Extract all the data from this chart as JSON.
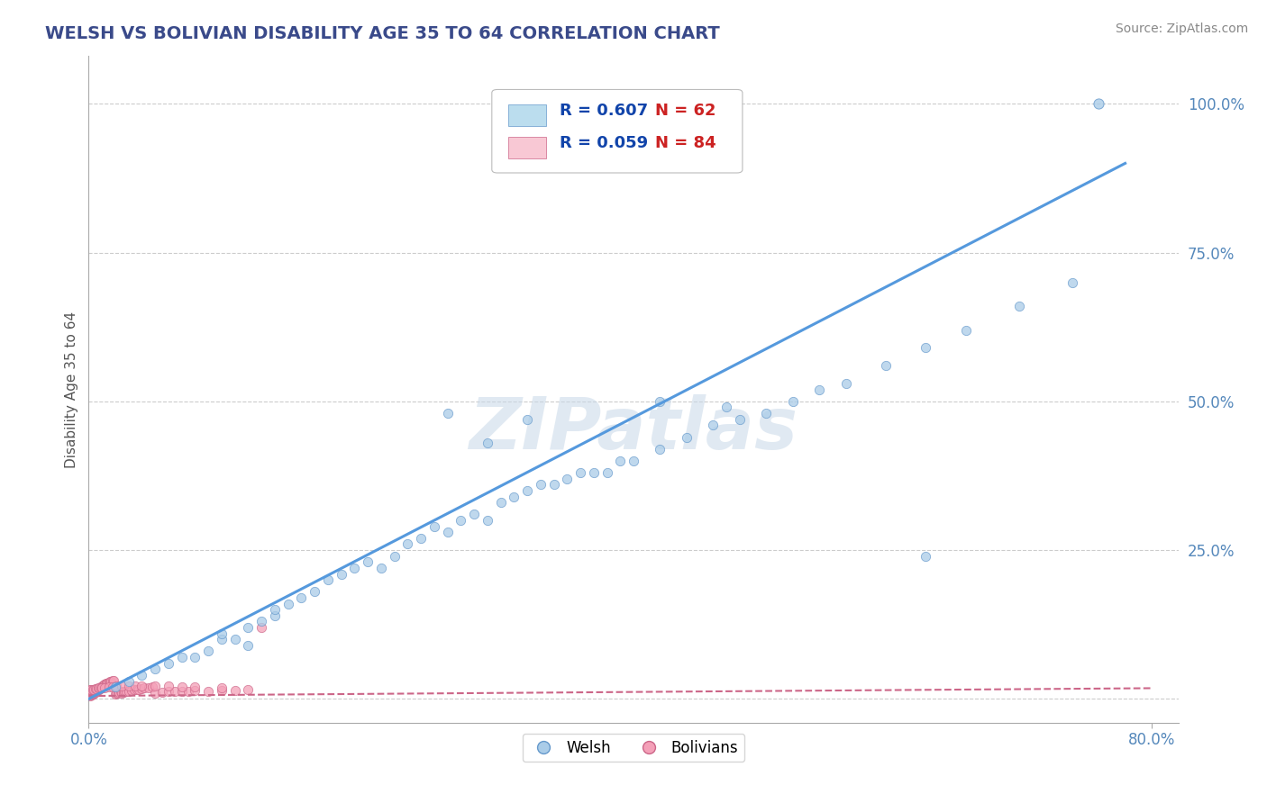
{
  "title": "WELSH VS BOLIVIAN DISABILITY AGE 35 TO 64 CORRELATION CHART",
  "source": "Source: ZipAtlas.com",
  "ylabel": "Disability Age 35 to 64",
  "xlim": [
    0.0,
    0.82
  ],
  "ylim": [
    -0.04,
    1.08
  ],
  "yticks": [
    0.0,
    0.25,
    0.5,
    0.75,
    1.0
  ],
  "ytick_labels": [
    "",
    "25.0%",
    "50.0%",
    "75.0%",
    "100.0%"
  ],
  "xticks": [
    0.0,
    0.8
  ],
  "xtick_labels": [
    "0.0%",
    "80.0%"
  ],
  "welsh_R": 0.607,
  "welsh_N": 62,
  "bolivian_R": 0.059,
  "bolivian_N": 84,
  "welsh_color": "#aacce8",
  "welsh_edge_color": "#6699cc",
  "welsh_line_color": "#5599dd",
  "bolivian_color": "#f4a0b8",
  "bolivian_edge_color": "#cc6688",
  "bolivian_line_color": "#cc6688",
  "title_color": "#3a4a8a",
  "axis_label_color": "#555555",
  "tick_color": "#5588bb",
  "legend_text_color": "#1144aa",
  "legend_N_color": "#cc2222",
  "watermark_color": "#c8d8e8",
  "watermark_alpha": 0.55,
  "background_color": "#ffffff",
  "grid_color": "#cccccc",
  "grid_linestyle": "--",
  "legend_box_color_welsh": "#bbddee",
  "legend_box_color_bolivian": "#f8c8d4",
  "welsh_x": [
    0.02,
    0.03,
    0.04,
    0.05,
    0.06,
    0.07,
    0.08,
    0.09,
    0.1,
    0.1,
    0.11,
    0.12,
    0.12,
    0.13,
    0.14,
    0.14,
    0.15,
    0.16,
    0.17,
    0.18,
    0.19,
    0.2,
    0.21,
    0.22,
    0.23,
    0.24,
    0.25,
    0.26,
    0.27,
    0.28,
    0.29,
    0.3,
    0.31,
    0.32,
    0.33,
    0.34,
    0.35,
    0.36,
    0.37,
    0.38,
    0.39,
    0.4,
    0.41,
    0.43,
    0.45,
    0.47,
    0.49,
    0.51,
    0.53,
    0.55,
    0.57,
    0.6,
    0.63,
    0.66,
    0.7,
    0.74,
    0.27,
    0.3,
    0.33,
    0.43,
    0.48,
    0.63
  ],
  "welsh_y": [
    0.02,
    0.03,
    0.04,
    0.05,
    0.06,
    0.07,
    0.07,
    0.08,
    0.1,
    0.11,
    0.1,
    0.09,
    0.12,
    0.13,
    0.14,
    0.15,
    0.16,
    0.17,
    0.18,
    0.2,
    0.21,
    0.22,
    0.23,
    0.22,
    0.24,
    0.26,
    0.27,
    0.29,
    0.28,
    0.3,
    0.31,
    0.3,
    0.33,
    0.34,
    0.35,
    0.36,
    0.36,
    0.37,
    0.38,
    0.38,
    0.38,
    0.4,
    0.4,
    0.42,
    0.44,
    0.46,
    0.47,
    0.48,
    0.5,
    0.52,
    0.53,
    0.56,
    0.59,
    0.62,
    0.66,
    0.7,
    0.48,
    0.43,
    0.47,
    0.5,
    0.49,
    0.24
  ],
  "bolivian_x": [
    0.001,
    0.002,
    0.002,
    0.003,
    0.003,
    0.004,
    0.004,
    0.005,
    0.005,
    0.006,
    0.006,
    0.007,
    0.007,
    0.008,
    0.008,
    0.009,
    0.009,
    0.01,
    0.01,
    0.011,
    0.011,
    0.012,
    0.012,
    0.013,
    0.013,
    0.014,
    0.015,
    0.016,
    0.017,
    0.018,
    0.019,
    0.02,
    0.021,
    0.022,
    0.023,
    0.024,
    0.025,
    0.026,
    0.027,
    0.028,
    0.03,
    0.032,
    0.034,
    0.036,
    0.038,
    0.04,
    0.042,
    0.045,
    0.048,
    0.05,
    0.055,
    0.06,
    0.065,
    0.07,
    0.075,
    0.08,
    0.09,
    0.1,
    0.11,
    0.12,
    0.001,
    0.002,
    0.003,
    0.004,
    0.005,
    0.006,
    0.007,
    0.008,
    0.009,
    0.01,
    0.012,
    0.015,
    0.018,
    0.021,
    0.025,
    0.03,
    0.035,
    0.04,
    0.05,
    0.06,
    0.07,
    0.08,
    0.1,
    0.13
  ],
  "bolivian_y": [
    0.005,
    0.006,
    0.007,
    0.008,
    0.008,
    0.009,
    0.01,
    0.011,
    0.012,
    0.013,
    0.014,
    0.015,
    0.016,
    0.016,
    0.017,
    0.018,
    0.019,
    0.02,
    0.021,
    0.022,
    0.023,
    0.024,
    0.025,
    0.026,
    0.026,
    0.027,
    0.028,
    0.029,
    0.03,
    0.031,
    0.031,
    0.008,
    0.009,
    0.01,
    0.011,
    0.012,
    0.01,
    0.011,
    0.012,
    0.013,
    0.013,
    0.014,
    0.015,
    0.016,
    0.016,
    0.017,
    0.018,
    0.019,
    0.02,
    0.01,
    0.011,
    0.012,
    0.012,
    0.013,
    0.013,
    0.014,
    0.013,
    0.014,
    0.014,
    0.015,
    0.015,
    0.015,
    0.016,
    0.016,
    0.017,
    0.017,
    0.018,
    0.018,
    0.019,
    0.019,
    0.019,
    0.02,
    0.02,
    0.021,
    0.021,
    0.022,
    0.022,
    0.021,
    0.022,
    0.022,
    0.02,
    0.02,
    0.018,
    0.12
  ],
  "welsh_line_x": [
    0.0,
    0.78
  ],
  "welsh_line_y": [
    0.0,
    0.9
  ],
  "bolivian_line_x": [
    0.0,
    0.8
  ],
  "bolivian_line_y": [
    0.005,
    0.018
  ],
  "outlier_welsh_x": [
    0.76
  ],
  "outlier_welsh_y": [
    1.0
  ]
}
